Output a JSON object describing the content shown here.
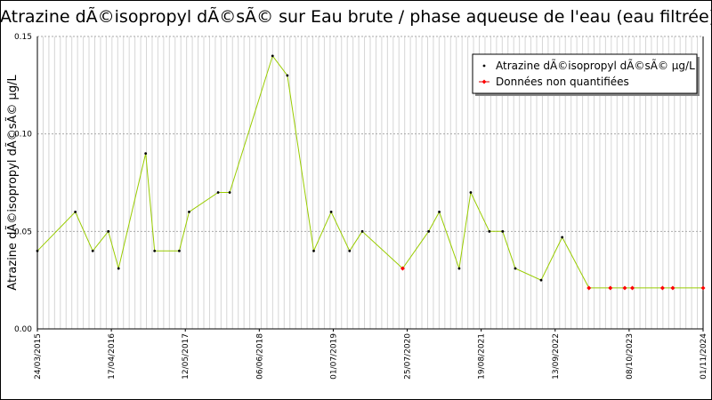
{
  "chart_data": {
    "type": "line",
    "title": "Atrazine dÃ©isopropyl dÃ©sÃ© sur Eau brute / phase aqueuse de l'eau (eau filtrée)",
    "ylabel": "Atrazine dÃ©isopropyl dÃ©sÃ© µg/L",
    "xlabel": "",
    "ylim": [
      0,
      0.15
    ],
    "xlim": [
      "2015-03-24",
      "2024-11-01"
    ],
    "y_ticks": [
      "0.00",
      "0.05",
      "0.10",
      "0.15"
    ],
    "x_ticks": [
      "24/03/2015",
      "17/04/2016",
      "12/05/2017",
      "06/06/2018",
      "01/07/2019",
      "25/07/2020",
      "19/08/2021",
      "13/09/2022",
      "08/10/2023",
      "01/11/2024"
    ],
    "grid": true,
    "legend_position": "top-right",
    "series": [
      {
        "name": "Atrazine dÃ©isopropyl dÃ©sÃ© µg/L",
        "color": "#99cc00",
        "marker_color": "#000000",
        "points": [
          [
            "2015-03-24",
            0.04
          ],
          [
            "2015-10-10",
            0.06
          ],
          [
            "2016-01-10",
            0.04
          ],
          [
            "2016-04-01",
            0.05
          ],
          [
            "2016-05-25",
            0.031
          ],
          [
            "2016-10-15",
            0.09
          ],
          [
            "2016-12-01",
            0.04
          ],
          [
            "2017-04-10",
            0.04
          ],
          [
            "2017-06-01",
            0.06
          ],
          [
            "2017-11-01",
            0.07
          ],
          [
            "2018-01-01",
            0.07
          ],
          [
            "2018-08-15",
            0.14
          ],
          [
            "2018-11-01",
            0.13
          ],
          [
            "2019-03-20",
            0.04
          ],
          [
            "2019-06-20",
            0.06
          ],
          [
            "2019-09-25",
            0.04
          ],
          [
            "2019-12-01",
            0.05
          ],
          [
            "2020-07-01",
            0.031
          ],
          [
            "2020-11-15",
            0.05
          ],
          [
            "2021-01-10",
            0.06
          ],
          [
            "2021-04-25",
            0.031
          ],
          [
            "2021-06-25",
            0.07
          ],
          [
            "2021-10-01",
            0.05
          ],
          [
            "2021-12-10",
            0.05
          ],
          [
            "2022-02-15",
            0.031
          ],
          [
            "2022-07-01",
            0.025
          ],
          [
            "2022-10-20",
            0.047
          ],
          [
            "2023-03-10",
            0.021
          ]
        ]
      },
      {
        "name": "Données non quantifiées",
        "color": "#cc0000",
        "marker_color": "#ff0000",
        "points": [
          [
            "2020-07-01",
            0.031
          ],
          [
            "2023-03-10",
            0.021
          ],
          [
            "2023-07-01",
            0.021
          ],
          [
            "2023-09-15",
            0.021
          ],
          [
            "2023-10-25",
            0.021
          ],
          [
            "2024-04-01",
            0.021
          ],
          [
            "2024-05-25",
            0.021
          ],
          [
            "2024-11-01",
            0.021
          ]
        ]
      }
    ]
  }
}
